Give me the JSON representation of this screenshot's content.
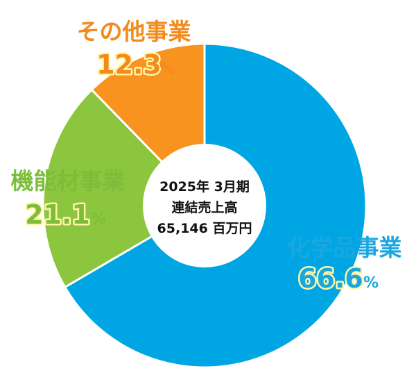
{
  "chart_data": {
    "type": "pie",
    "style": "donut",
    "center_lines": [
      "2025年 3月期",
      "連結売上高",
      "65,146 百万円"
    ],
    "slices": [
      {
        "label": "化学品事業",
        "value": 66.6,
        "value_text": "66.6",
        "unit": "%",
        "color": "#00a6e3",
        "text_color": "#1aa7e0"
      },
      {
        "label": "機能材事業",
        "value": 21.1,
        "value_text": "21.1",
        "unit": "%",
        "color": "#8cc63e",
        "text_color": "#7dbd3a"
      },
      {
        "label": "その他事業",
        "value": 12.3,
        "value_text": "12.3",
        "unit": "%",
        "color": "#f7931e",
        "text_color": "#f28a1c"
      }
    ],
    "start": "top",
    "direction": "clockwise",
    "separator_color": "#ffffff"
  }
}
